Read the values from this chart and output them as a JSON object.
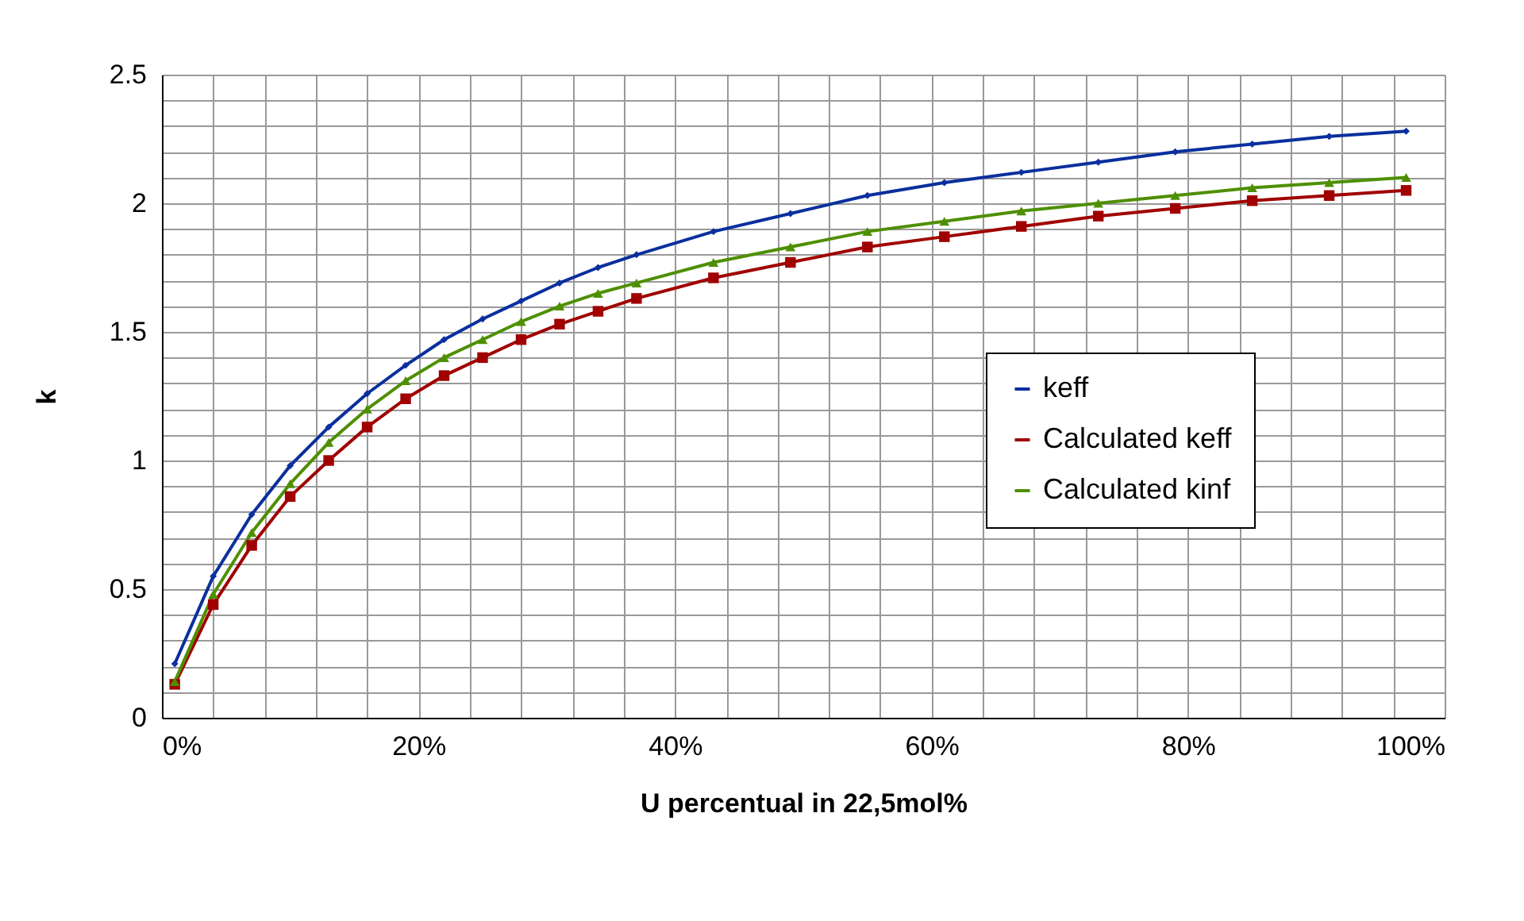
{
  "chart_data": {
    "type": "line",
    "xlabel": "U percentual in 22,5mol%",
    "ylabel": "k",
    "x": [
      1,
      4,
      7,
      10,
      13,
      16,
      19,
      22,
      25,
      28,
      31,
      34,
      37,
      43,
      49,
      55,
      61,
      67,
      73,
      79,
      85,
      91,
      97
    ],
    "series": [
      {
        "name": "keff",
        "color": "#0a2f9e",
        "marker": "diamond",
        "values": [
          0.21,
          0.55,
          0.79,
          0.98,
          1.13,
          1.26,
          1.37,
          1.47,
          1.55,
          1.62,
          1.69,
          1.75,
          1.8,
          1.89,
          1.96,
          2.03,
          2.08,
          2.12,
          2.16,
          2.2,
          2.23,
          2.26,
          2.28
        ]
      },
      {
        "name": "Calculated keff",
        "color": "#a00000",
        "marker": "square",
        "values": [
          0.13,
          0.44,
          0.67,
          0.86,
          1.0,
          1.13,
          1.24,
          1.33,
          1.4,
          1.47,
          1.53,
          1.58,
          1.63,
          1.71,
          1.77,
          1.83,
          1.87,
          1.91,
          1.95,
          1.98,
          2.01,
          2.03,
          2.05
        ]
      },
      {
        "name": "Calculated kinf",
        "color": "#4e8f00",
        "marker": "triangle",
        "values": [
          0.14,
          0.48,
          0.72,
          0.91,
          1.07,
          1.2,
          1.31,
          1.4,
          1.47,
          1.54,
          1.6,
          1.65,
          1.69,
          1.77,
          1.83,
          1.89,
          1.93,
          1.97,
          2.0,
          2.03,
          2.06,
          2.08,
          2.1
        ]
      }
    ],
    "xlim": [
      0,
      100
    ],
    "ylim": [
      0,
      2.5
    ],
    "xticks": [
      {
        "value": 0,
        "label": "0%"
      },
      {
        "value": 20,
        "label": "20%"
      },
      {
        "value": 40,
        "label": "40%"
      },
      {
        "value": 60,
        "label": "60%"
      },
      {
        "value": 80,
        "label": "80%"
      },
      {
        "value": 100,
        "label": "100%"
      }
    ],
    "yticks": [
      0,
      0.5,
      1,
      1.5,
      2,
      2.5
    ],
    "grid": true,
    "legend": "bottom right",
    "line_style": "solid"
  }
}
